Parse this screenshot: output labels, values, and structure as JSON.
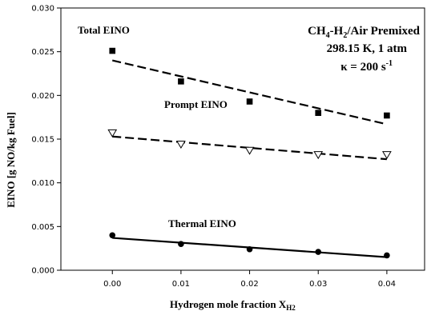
{
  "chart_data": {
    "type": "scatter",
    "xlabel": "Hydrogen mole fraction  X",
    "xlabel_sub": "H2",
    "ylabel": "EINO [g NO/kg Fuel]",
    "xlim": [
      -0.0075,
      0.0455
    ],
    "ylim": [
      0.0,
      0.03
    ],
    "x_ticks": [
      0.0,
      0.01,
      0.02,
      0.03,
      0.04
    ],
    "x_tick_labels": [
      "0.00",
      "0.01",
      "0.02",
      "0.03",
      "0.04"
    ],
    "y_ticks": [
      0.0,
      0.005,
      0.01,
      0.015,
      0.02,
      0.025,
      0.03
    ],
    "y_tick_labels": [
      "0.000",
      "0.005",
      "0.010",
      "0.015",
      "0.020",
      "0.025",
      "0.030"
    ],
    "grid": false,
    "legend": "none",
    "condition_text": {
      "line1_main": "CH",
      "line1_sub1": "4",
      "line1_mid": "-H",
      "line1_sub2": "2",
      "line1_end": "/Air Premixed",
      "line2": "298.15 K, 1 atm",
      "line3_main": "κ = 200 s",
      "line3_sup": "-1"
    },
    "series": [
      {
        "name": "Total EINO",
        "marker": "filled-square",
        "x": [
          0.0,
          0.01,
          0.02,
          0.03,
          0.04
        ],
        "y": [
          0.0251,
          0.0216,
          0.0193,
          0.018,
          0.0177
        ],
        "fit": {
          "x": [
            0.0,
            0.04
          ],
          "y": [
            0.024,
            0.0167
          ],
          "style": "dashed"
        }
      },
      {
        "name": "Prompt EINO",
        "marker": "open-triangle-down",
        "x": [
          0.0,
          0.01,
          0.02,
          0.03,
          0.04
        ],
        "y": [
          0.0157,
          0.0144,
          0.0137,
          0.0132,
          0.0132
        ],
        "fit": {
          "x": [
            0.0,
            0.04
          ],
          "y": [
            0.0153,
            0.0127
          ],
          "style": "dashed"
        }
      },
      {
        "name": "Thermal EINO",
        "marker": "filled-circle",
        "x": [
          0.0,
          0.01,
          0.02,
          0.03,
          0.04
        ],
        "y": [
          0.004,
          0.003,
          0.0024,
          0.0021,
          0.0017
        ],
        "fit": {
          "x": [
            0.0,
            0.04
          ],
          "y": [
            0.0037,
            0.0015
          ],
          "style": "solid"
        }
      }
    ]
  }
}
